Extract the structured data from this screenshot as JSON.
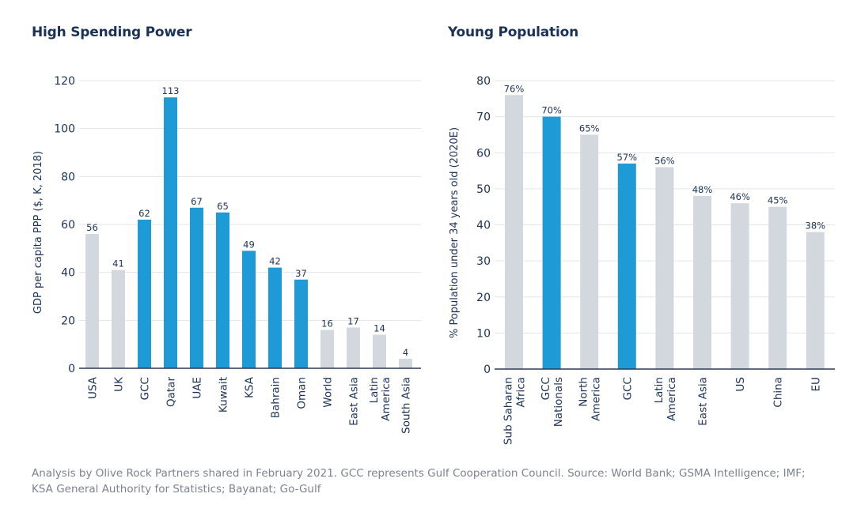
{
  "footnote": {
    "line1": "Analysis by Olive Rock Partners shared in February 2021. GCC represents Gulf Cooperation Council. Source: World Bank; GSMA Intelligence; IMF;",
    "line2": "KSA General Authority for Statistics; Bayanat; Go-Gulf"
  },
  "colors": {
    "highlight": "#1e9ad6",
    "neutral": "#d3d7de",
    "grid": "#e3e6ea",
    "axis": "#2b3a55",
    "text": "#1b3257"
  },
  "chart_data": [
    {
      "type": "bar",
      "title": "High Spending Power",
      "xlabel": "",
      "ylabel": "GDP per capita PPP ($, K, 2018)",
      "ylim": [
        0,
        120
      ],
      "yticks": [
        0,
        20,
        40,
        60,
        80,
        100,
        120
      ],
      "grid": true,
      "categories": [
        [
          "USA"
        ],
        [
          "UK"
        ],
        [
          "GCC"
        ],
        [
          "Qatar"
        ],
        [
          "UAE"
        ],
        [
          "Kuwait"
        ],
        [
          "KSA"
        ],
        [
          "Bahrain"
        ],
        [
          "Oman"
        ],
        [
          "World"
        ],
        [
          "East Asia"
        ],
        [
          "Latin",
          "America"
        ],
        [
          "South Asia"
        ]
      ],
      "values": [
        56,
        41,
        62,
        113,
        67,
        65,
        49,
        42,
        37,
        16,
        17,
        14,
        4
      ],
      "labels": [
        "56",
        "41",
        "62",
        "113",
        "67",
        "65",
        "49",
        "42",
        "37",
        "16",
        "17",
        "14",
        "4"
      ],
      "highlighted": [
        false,
        false,
        true,
        true,
        true,
        true,
        true,
        true,
        true,
        false,
        false,
        false,
        false
      ]
    },
    {
      "type": "bar",
      "title": "Young Population",
      "xlabel": "",
      "ylabel": "% Population under 34 years old (2020E)",
      "ylim": [
        0,
        80
      ],
      "yticks": [
        0,
        10,
        20,
        30,
        40,
        50,
        60,
        70,
        80
      ],
      "grid": true,
      "categories": [
        [
          "Sub Saharan",
          "Africa"
        ],
        [
          "GCC",
          "Nationals"
        ],
        [
          "North",
          "America"
        ],
        [
          "GCC"
        ],
        [
          "Latin",
          "America"
        ],
        [
          "East Asia"
        ],
        [
          "US"
        ],
        [
          "China"
        ],
        [
          "EU"
        ]
      ],
      "values": [
        76,
        70,
        65,
        57,
        56,
        48,
        46,
        45,
        38
      ],
      "labels": [
        "76%",
        "70%",
        "65%",
        "57%",
        "56%",
        "48%",
        "46%",
        "45%",
        "38%"
      ],
      "highlighted": [
        false,
        true,
        false,
        true,
        false,
        false,
        false,
        false,
        false
      ]
    }
  ]
}
